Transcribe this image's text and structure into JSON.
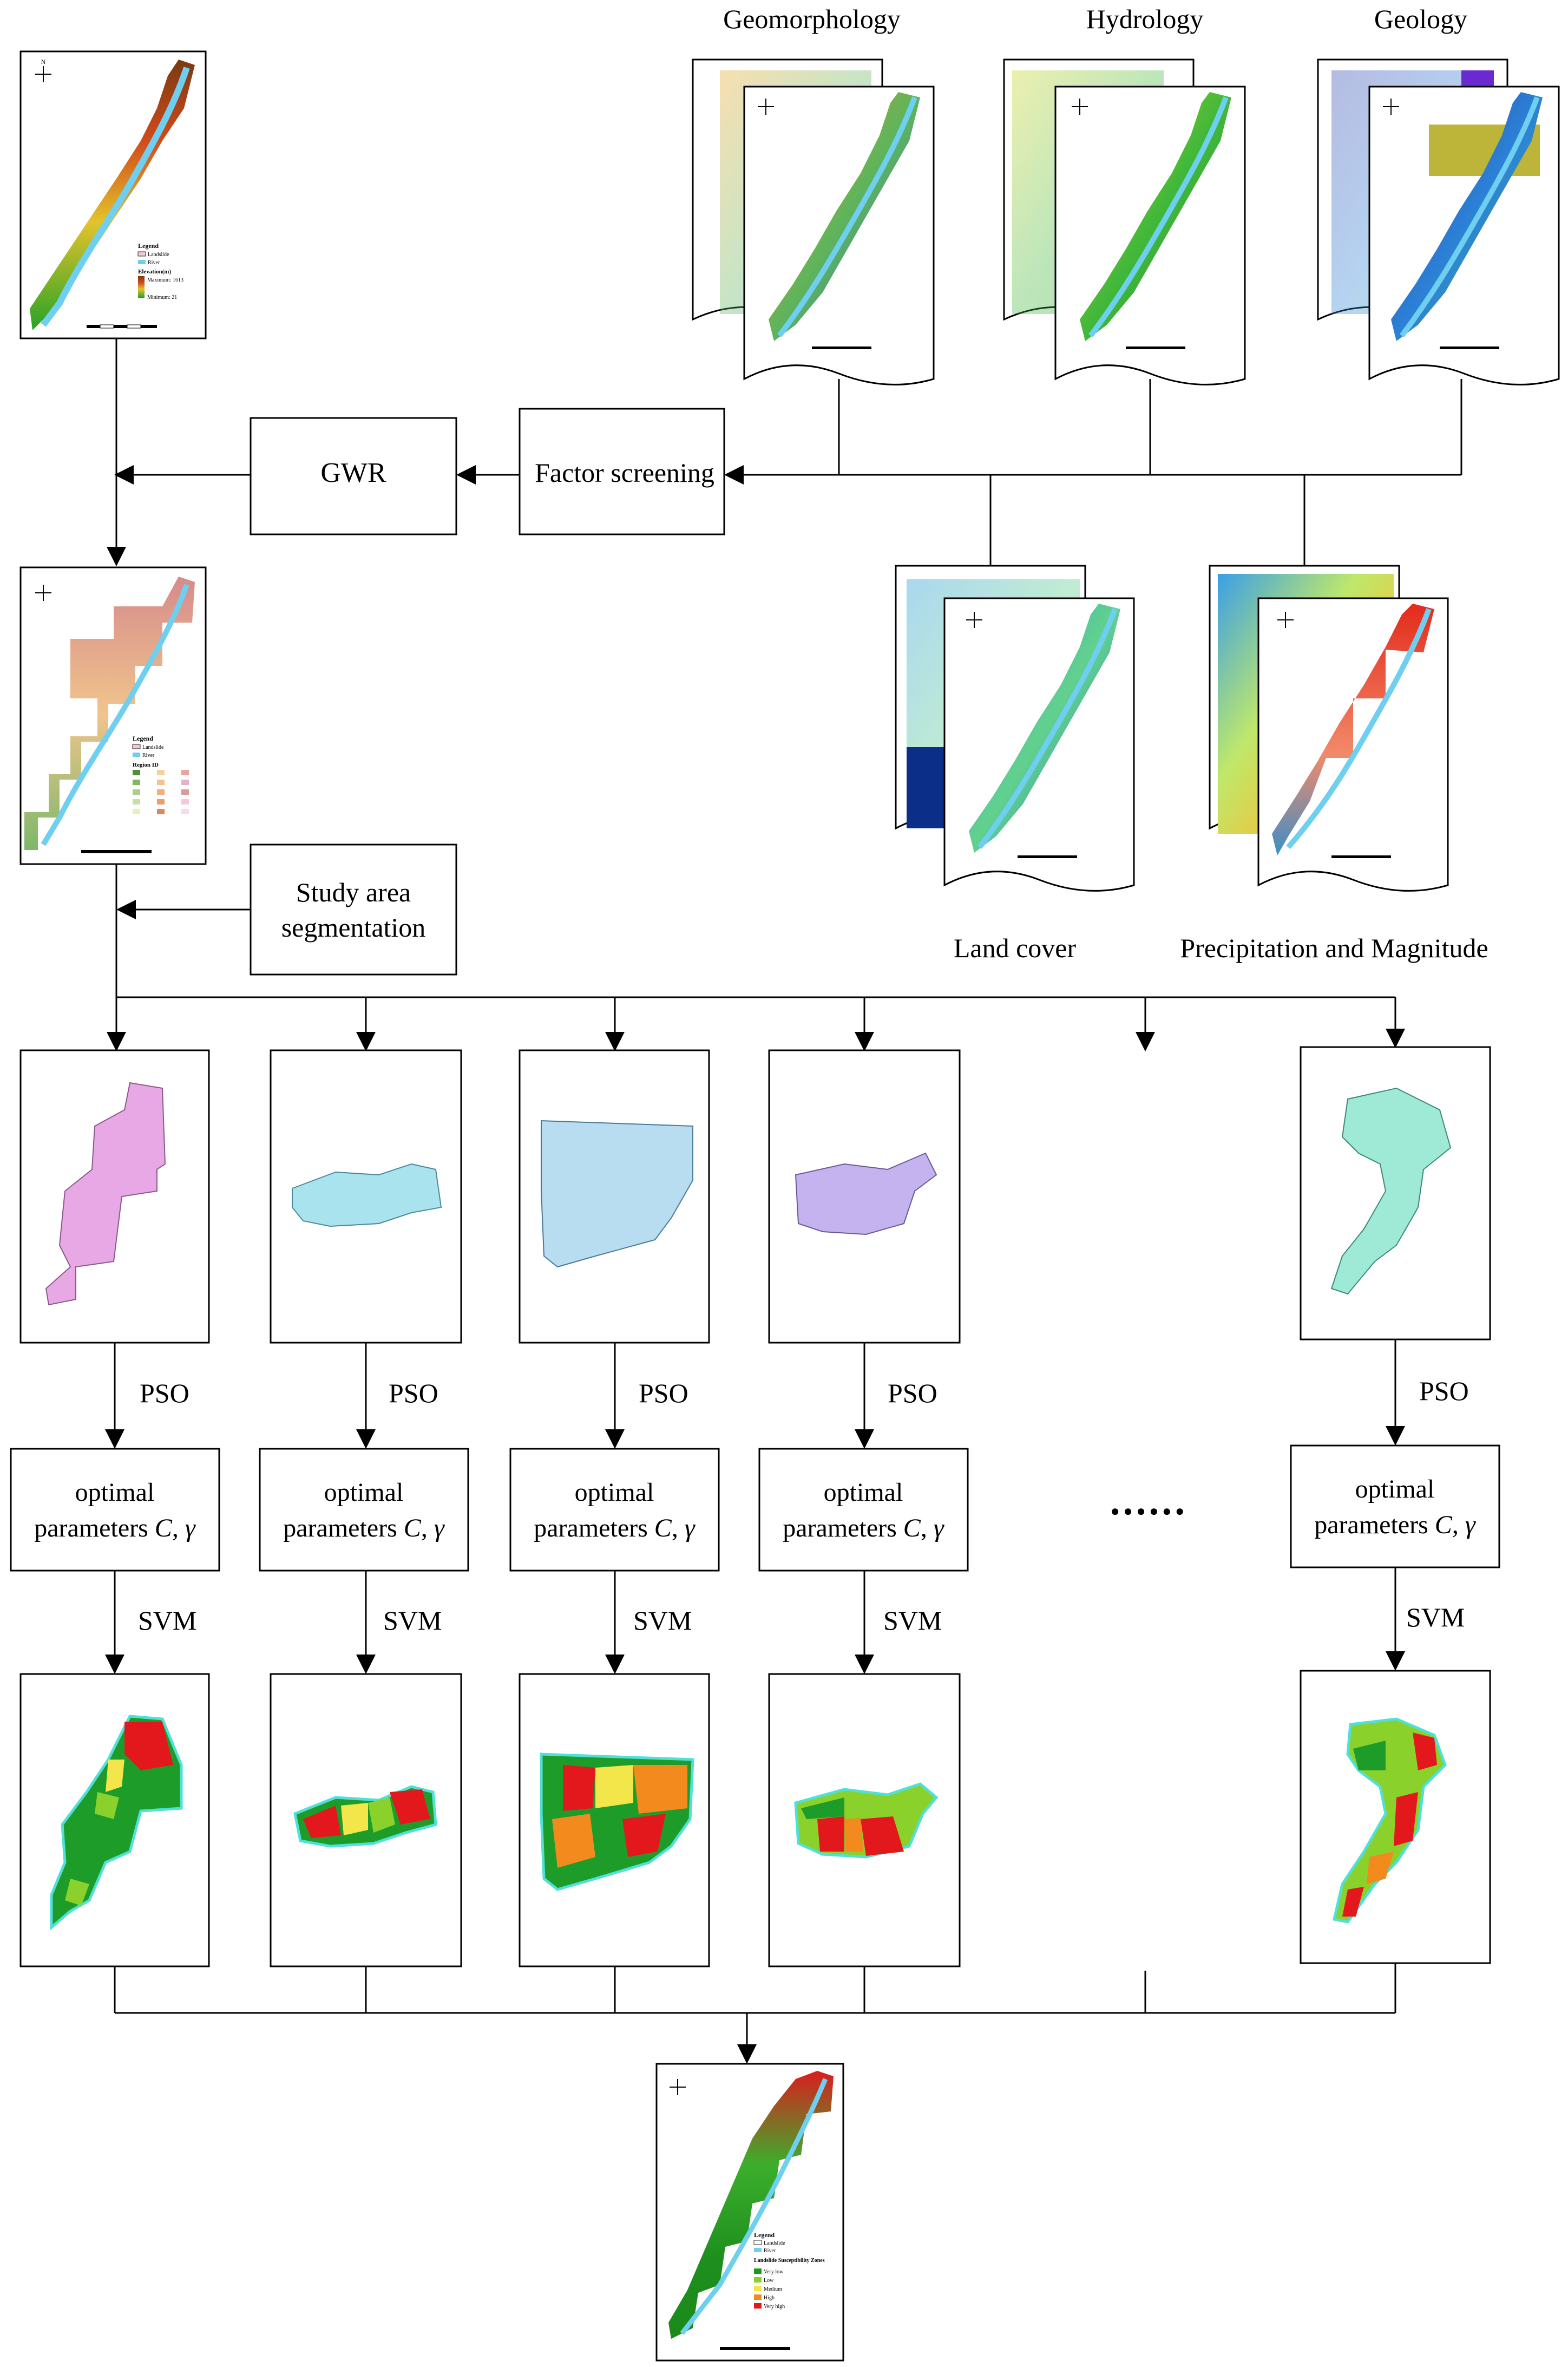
{
  "factor_titles": {
    "geomorphology": "Geomorphology",
    "hydrology": "Hydrology",
    "geology": "Geology",
    "land_cover": "Land cover",
    "precipitation_magnitude": "Precipitation and Magnitude"
  },
  "process_boxes": {
    "gwr": "GWR",
    "factor_screening": "Factor screening",
    "segmentation_line1": "Study area",
    "segmentation_line2": "segmentation"
  },
  "steps": {
    "pso": "PSO",
    "svm": "SVM",
    "optimal_line1": "optimal",
    "optimal_line2_prefix": "parameters ",
    "optimal_c": "C",
    "optimal_sep": ", ",
    "optimal_gamma": "γ",
    "ellipsis": "● ● ● ● ● ●"
  },
  "map_elevation": {
    "legend_title": "Legend",
    "legend_items": [
      "Landslide",
      "River"
    ],
    "elevation_title": "Elevation(m)",
    "elevation_max": "Maximum: 1613",
    "elevation_min": "Minimum: 21"
  },
  "map_regions": {
    "legend_title": "Legend",
    "legend_items": [
      "Landslide",
      "River"
    ],
    "region_title": "Region ID"
  },
  "map_final": {
    "legend_title": "Legend",
    "legend_items": [
      "Landslide",
      "River"
    ],
    "zones_title": "Landslide Susceptibility Zones",
    "zones": [
      "Very low",
      "Low",
      "Medium",
      "High",
      "Very high"
    ],
    "zone_colors": [
      "#1a9a1a",
      "#8bd12b",
      "#f3e64a",
      "#f28a1e",
      "#e3181c"
    ]
  },
  "colors": {
    "river": "#6ecff0",
    "sub_pink": "#e8a8e6",
    "sub_cyan": "#a9e3ee",
    "sub_lightblue": "#b9ddf0",
    "sub_lavender": "#c4b3ee",
    "sub_mint": "#9fe9d7"
  }
}
